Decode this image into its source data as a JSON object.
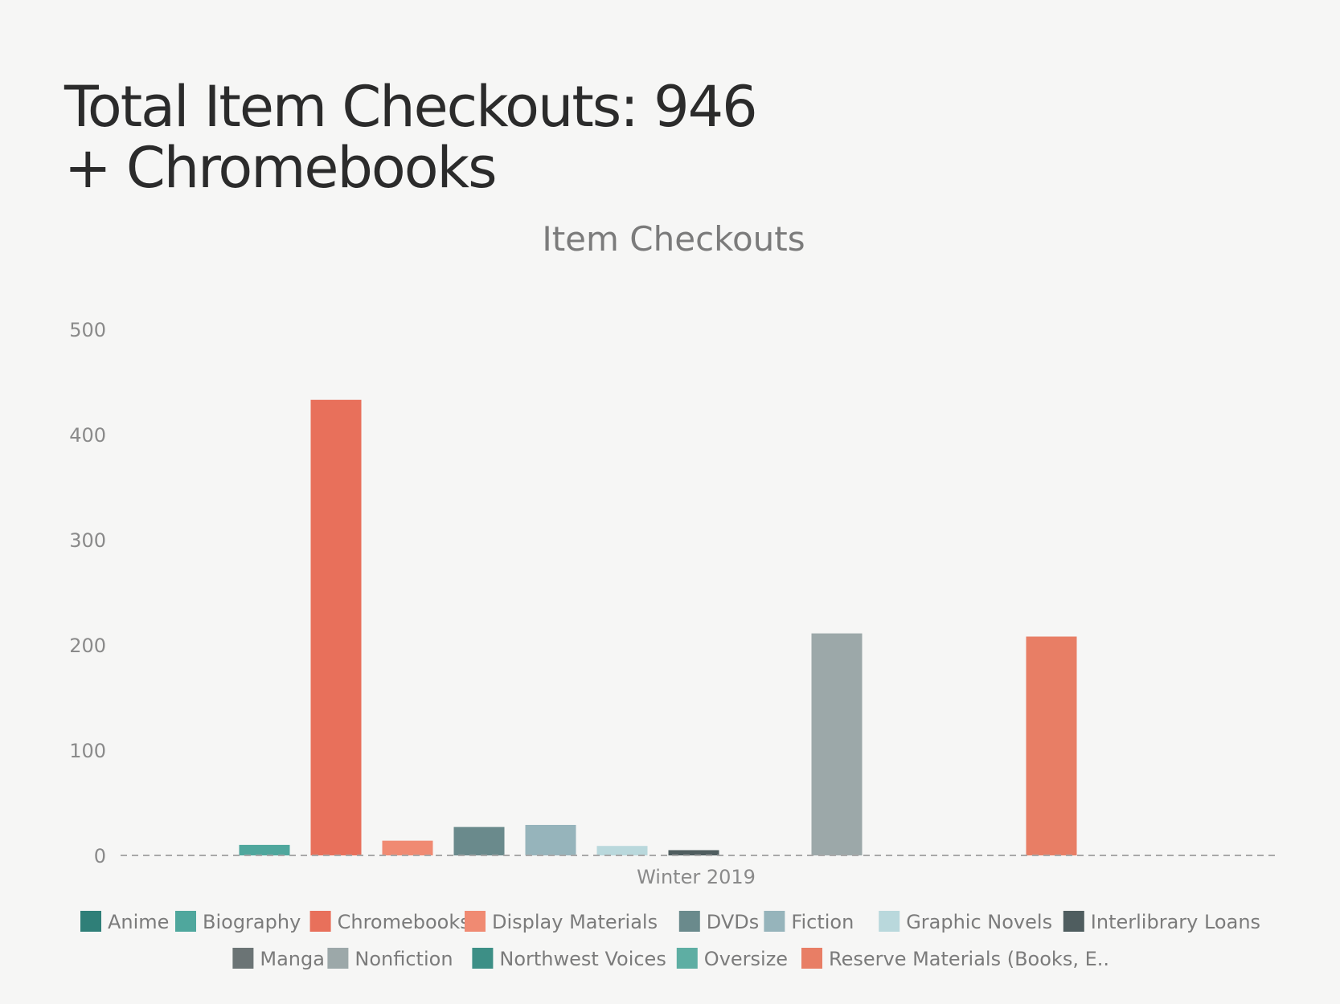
{
  "slide": {
    "title_line1": "Total Item Checkouts: 946",
    "title_line2": "+ Chromebooks"
  },
  "chart_data": {
    "type": "bar",
    "title": "Item Checkouts",
    "categories": [
      "Winter 2019"
    ],
    "ylim": [
      0,
      500
    ],
    "yticks": [
      0,
      100,
      200,
      300,
      400,
      500
    ],
    "grid": false,
    "legend_position": "bottom",
    "series": [
      {
        "name": "Anime",
        "values": [
          0
        ],
        "color": "#2f7f78"
      },
      {
        "name": "Biography",
        "values": [
          10
        ],
        "color": "#4fa79d"
      },
      {
        "name": "Chromebooks",
        "values": [
          433
        ],
        "color": "#e8705b"
      },
      {
        "name": "Display Materials",
        "values": [
          14
        ],
        "color": "#f08a72"
      },
      {
        "name": "DVDs",
        "values": [
          27
        ],
        "color": "#6a8a8c"
      },
      {
        "name": "Fiction",
        "values": [
          29
        ],
        "color": "#96b4bb"
      },
      {
        "name": "Graphic Novels",
        "values": [
          9
        ],
        "color": "#b9d8dc"
      },
      {
        "name": "Interlibrary Loans",
        "values": [
          5
        ],
        "color": "#4f5d5f"
      },
      {
        "name": "Manga",
        "values": [
          0
        ],
        "color": "#6b7475"
      },
      {
        "name": "Nonfiction",
        "values": [
          211
        ],
        "color": "#9ca8a9"
      },
      {
        "name": "Northwest Voices",
        "values": [
          0
        ],
        "color": "#3d8f86"
      },
      {
        "name": "Oversize",
        "values": [
          0
        ],
        "color": "#5eaea3"
      },
      {
        "name": "Reserve Materials (Books, E..",
        "values": [
          208
        ],
        "color": "#e87e65"
      }
    ]
  }
}
